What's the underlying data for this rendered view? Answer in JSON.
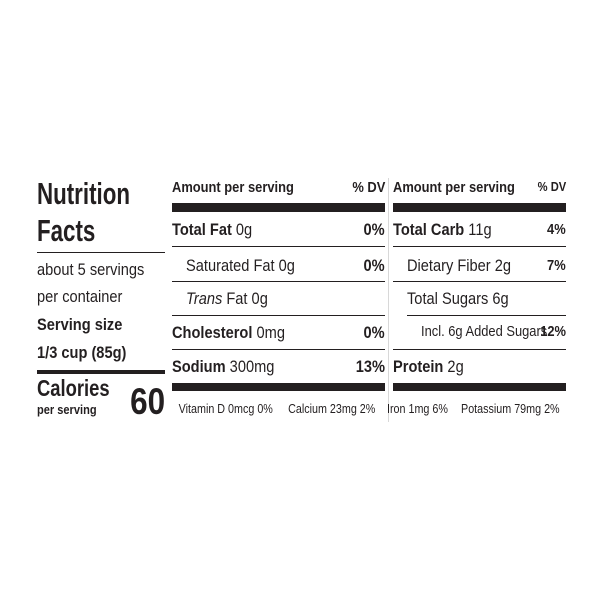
{
  "label": {
    "title_line1": "Nutrition",
    "title_line2": "Facts",
    "servings_line1": "about 5 servings",
    "servings_line2": "per container",
    "serving_size_label": "Serving size",
    "serving_size": "1/3 cup (85g)",
    "calories_label": "Calories",
    "calories_sub": "per serving",
    "calories": "60",
    "header_amount": "Amount per serving",
    "header_dv": "% DV",
    "left_rows": [
      {
        "name": "Total Fat",
        "amount": "0g",
        "dv": "0%"
      },
      {
        "name": "Saturated Fat",
        "amount": "0g",
        "dv": "0%"
      },
      {
        "name_italic": "Trans",
        "name": "Fat",
        "amount": "0g"
      },
      {
        "name": "Cholesterol",
        "amount": "0mg",
        "dv": "0%"
      },
      {
        "name": "Sodium",
        "amount": "300mg",
        "dv": "13%"
      }
    ],
    "right_rows": [
      {
        "name": "Total Carb",
        "amount": "11g",
        "dv": "4%"
      },
      {
        "name": "Dietary Fiber",
        "amount": "2g",
        "dv": "7%"
      },
      {
        "name": "Total Sugars",
        "amount": "6g"
      },
      {
        "name": "Incl. 6g Added Sugars",
        "dv": "12%"
      },
      {
        "name": "Protein",
        "amount": "2g"
      }
    ],
    "footer": [
      "Vitamin D 0mcg 0%",
      "Calcium 23mg 2%",
      "Iron 1mg 6%",
      "Potassium 79mg 2%"
    ]
  }
}
